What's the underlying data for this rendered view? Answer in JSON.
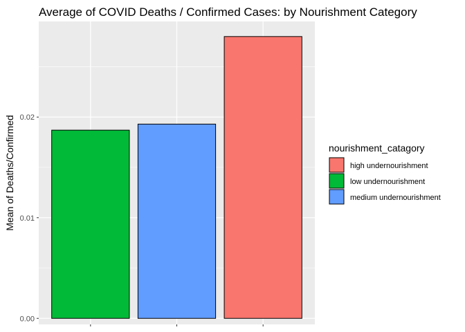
{
  "chart_data": {
    "type": "bar",
    "title": "Average of COVID Deaths / Confirmed Cases: by Nourishment Category",
    "xlabel": "",
    "ylabel": "Mean of Deaths/Confirmed",
    "categories": [
      "low undernourishment",
      "medium undernourishment",
      "high undernourishment"
    ],
    "values": [
      0.0187,
      0.0193,
      0.028
    ],
    "colors": [
      "#00BA38",
      "#619CFF",
      "#F8766D"
    ],
    "ylim": [
      -0.0006,
      0.0295
    ],
    "yticks": [
      {
        "value": 0.0,
        "label": "0.00"
      },
      {
        "value": 0.01,
        "label": "0.01"
      },
      {
        "value": 0.02,
        "label": "0.02"
      }
    ],
    "grid": true,
    "legend": {
      "title": "nourishment_catagory",
      "position": "right",
      "items": [
        {
          "label": "high undernourishment",
          "color": "#F8766D"
        },
        {
          "label": "low undernourishment",
          "color": "#00BA38"
        },
        {
          "label": "medium undernourishment",
          "color": "#619CFF"
        }
      ]
    },
    "panel_color": "#EBEBEB",
    "grid_color": "#FFFFFF"
  }
}
